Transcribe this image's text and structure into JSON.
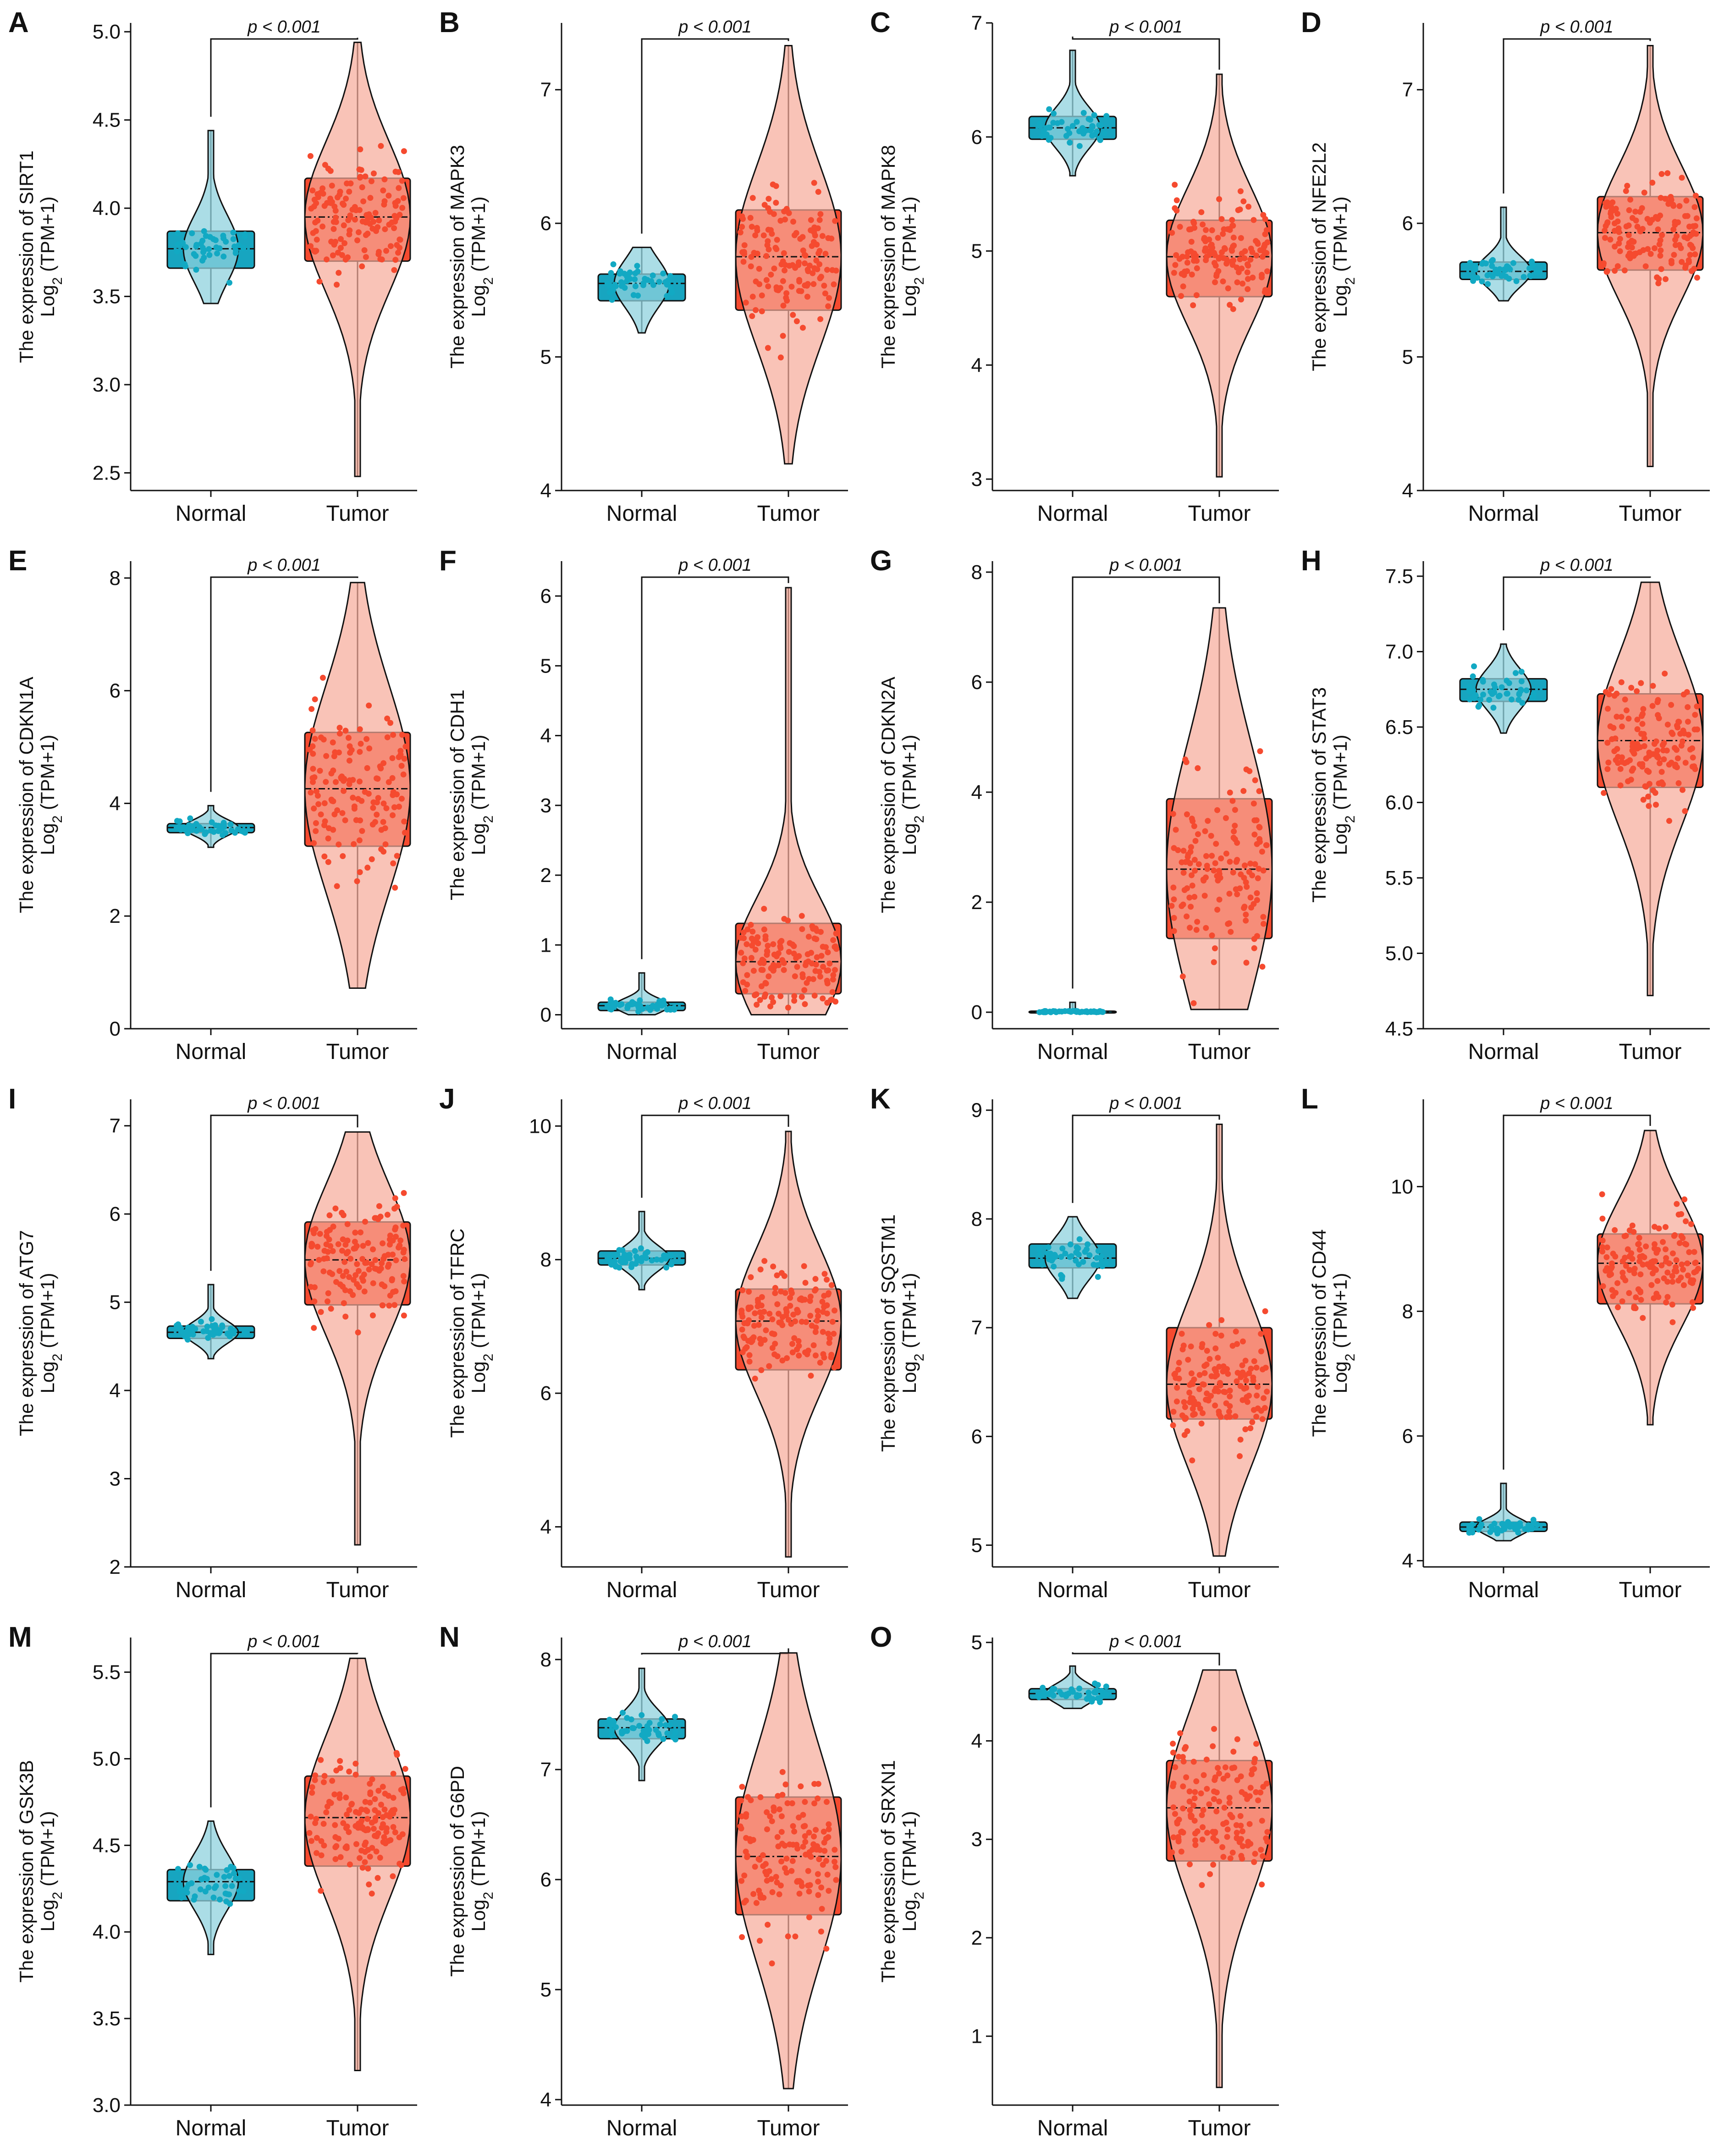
{
  "figure": {
    "colors": {
      "normal": "#12a9c3",
      "normal_fill": "#8fd1de",
      "tumor": "#f54a2f",
      "tumor_fill": "#f7aa98",
      "box_normal": "#17a5c0",
      "box_tumor": "#f54a2f"
    }
  },
  "chart_data": [
    {
      "type": "box",
      "letter": "A",
      "gene": "SIRT1",
      "ylabel": "The expression of SIRT1",
      "ylabel2_prefix": "Log",
      "ylabel2_sub": "2",
      "ylabel2_suffix": " (TPM+1)",
      "categories": [
        "Normal",
        "Tumor"
      ],
      "p_text": "p < 0.001",
      "ylim": [
        2.4,
        5.05
      ],
      "ticks": [
        2.5,
        3.0,
        3.5,
        4.0,
        4.5,
        5.0
      ],
      "tick_labels": [
        "2.5",
        "3.0",
        "3.5",
        "4.0",
        "4.5",
        "5.0"
      ],
      "normal": {
        "min": 3.46,
        "q1": 3.66,
        "median": 3.77,
        "q3": 3.87,
        "max": 4.44
      },
      "tumor": {
        "min": 2.48,
        "q1": 3.7,
        "median": 3.95,
        "q3": 4.17,
        "max": 4.94
      }
    },
    {
      "type": "box",
      "letter": "B",
      "gene": "MAPK3",
      "ylabel": "The expression of MAPK3",
      "ylabel2_prefix": "Log",
      "ylabel2_sub": "2",
      "ylabel2_suffix": " (TPM+1)",
      "categories": [
        "Normal",
        "Tumor"
      ],
      "p_text": "p < 0.001",
      "ylim": [
        4.0,
        7.5
      ],
      "ticks": [
        4,
        5,
        6,
        7
      ],
      "tick_labels": [
        "4",
        "5",
        "6",
        "7"
      ],
      "normal": {
        "min": 5.18,
        "q1": 5.42,
        "median": 5.55,
        "q3": 5.62,
        "max": 5.82
      },
      "tumor": {
        "min": 4.2,
        "q1": 5.35,
        "median": 5.75,
        "q3": 6.1,
        "max": 7.33
      }
    },
    {
      "type": "box",
      "letter": "C",
      "gene": "MAPK8",
      "ylabel": "The expression of MAPK8",
      "ylabel2_prefix": "Log",
      "ylabel2_sub": "2",
      "ylabel2_suffix": " (TPM+1)",
      "categories": [
        "Normal",
        "Tumor"
      ],
      "p_text": "p < 0.001",
      "ylim": [
        2.9,
        7.0
      ],
      "ticks": [
        3,
        4,
        5,
        6,
        7
      ],
      "tick_labels": [
        "3",
        "4",
        "5",
        "6",
        "7"
      ],
      "normal": {
        "min": 5.66,
        "q1": 5.98,
        "median": 6.08,
        "q3": 6.18,
        "max": 6.76
      },
      "tumor": {
        "min": 3.02,
        "q1": 4.6,
        "median": 4.95,
        "q3": 5.27,
        "max": 6.55
      }
    },
    {
      "type": "box",
      "letter": "D",
      "gene": "NFE2L2",
      "ylabel": "The expression of NFE2L2",
      "ylabel2_prefix": "Log",
      "ylabel2_sub": "2",
      "ylabel2_suffix": " (TPM+1)",
      "categories": [
        "Normal",
        "Tumor"
      ],
      "p_text": "p < 0.001",
      "ylim": [
        4.0,
        7.5
      ],
      "ticks": [
        4,
        5,
        6,
        7
      ],
      "tick_labels": [
        "4",
        "5",
        "6",
        "7"
      ],
      "normal": {
        "min": 5.42,
        "q1": 5.58,
        "median": 5.64,
        "q3": 5.71,
        "max": 6.12
      },
      "tumor": {
        "min": 4.18,
        "q1": 5.65,
        "median": 5.93,
        "q3": 6.2,
        "max": 7.33
      }
    },
    {
      "type": "box",
      "letter": "E",
      "gene": "CDKN1A",
      "ylabel": "The expression of CDKN1A",
      "ylabel2_prefix": "Log",
      "ylabel2_sub": "2",
      "ylabel2_suffix": " (TPM+1)",
      "categories": [
        "Normal",
        "Tumor"
      ],
      "p_text": "p < 0.001",
      "ylim": [
        0,
        8.3
      ],
      "ticks": [
        0,
        2,
        4,
        6,
        8
      ],
      "tick_labels": [
        "0",
        "2",
        "4",
        "6",
        "8"
      ],
      "normal": {
        "min": 3.22,
        "q1": 3.48,
        "median": 3.57,
        "q3": 3.64,
        "max": 3.96
      },
      "tumor": {
        "min": 0.72,
        "q1": 3.24,
        "median": 4.26,
        "q3": 5.26,
        "max": 7.92
      }
    },
    {
      "type": "box",
      "letter": "F",
      "gene": "CDH1",
      "ylabel": "The expression of CDH1",
      "ylabel2_prefix": "Log",
      "ylabel2_sub": "2",
      "ylabel2_suffix": " (TPM+1)",
      "categories": [
        "Normal",
        "Tumor"
      ],
      "p_text": "p < 0.001",
      "ylim": [
        -0.2,
        6.5
      ],
      "ticks": [
        0,
        1,
        2,
        3,
        4,
        5,
        6
      ],
      "tick_labels": [
        "0",
        "1",
        "2",
        "3",
        "4",
        "5",
        "6"
      ],
      "normal": {
        "min": 0.0,
        "q1": 0.06,
        "median": 0.13,
        "q3": 0.18,
        "max": 0.6
      },
      "tumor": {
        "min": 0.0,
        "q1": 0.3,
        "median": 0.76,
        "q3": 1.31,
        "max": 6.12
      }
    },
    {
      "type": "box",
      "letter": "G",
      "gene": "CDKN2A",
      "ylabel": "The expression of CDKN2A",
      "ylabel2_prefix": "Log",
      "ylabel2_sub": "2",
      "ylabel2_suffix": " (TPM+1)",
      "categories": [
        "Normal",
        "Tumor"
      ],
      "p_text": "p < 0.001",
      "ylim": [
        -0.3,
        8.2
      ],
      "ticks": [
        0,
        2,
        4,
        6,
        8
      ],
      "tick_labels": [
        "0",
        "2",
        "4",
        "6",
        "8"
      ],
      "normal": {
        "min": 0.0,
        "q1": 0.0,
        "median": 0.01,
        "q3": 0.02,
        "max": 0.18
      },
      "tumor": {
        "min": 0.05,
        "q1": 1.34,
        "median": 2.6,
        "q3": 3.88,
        "max": 7.35
      }
    },
    {
      "type": "box",
      "letter": "H",
      "gene": "STAT3",
      "ylabel": "The expression of STAT3",
      "ylabel2_prefix": "Log",
      "ylabel2_sub": "2",
      "ylabel2_suffix": " (TPM+1)",
      "categories": [
        "Normal",
        "Tumor"
      ],
      "p_text": "p < 0.001",
      "ylim": [
        4.5,
        7.6
      ],
      "ticks": [
        4.5,
        5.0,
        5.5,
        6.0,
        6.5,
        7.0,
        7.5
      ],
      "tick_labels": [
        "4.5",
        "5.0",
        "5.5",
        "6.0",
        "6.5",
        "7.0",
        "7.5"
      ],
      "normal": {
        "min": 6.46,
        "q1": 6.67,
        "median": 6.75,
        "q3": 6.82,
        "max": 7.05
      },
      "tumor": {
        "min": 4.72,
        "q1": 6.1,
        "median": 6.41,
        "q3": 6.72,
        "max": 7.46
      }
    },
    {
      "type": "box",
      "letter": "I",
      "gene": "ATG7",
      "ylabel": "The expression of ATG7",
      "ylabel2_prefix": "Log",
      "ylabel2_sub": "2",
      "ylabel2_suffix": " (TPM+1)",
      "categories": [
        "Normal",
        "Tumor"
      ],
      "p_text": "p < 0.001",
      "ylim": [
        2.0,
        7.3
      ],
      "ticks": [
        2,
        3,
        4,
        5,
        6,
        7
      ],
      "tick_labels": [
        "2",
        "3",
        "4",
        "5",
        "6",
        "7"
      ],
      "normal": {
        "min": 4.36,
        "q1": 4.59,
        "median": 4.66,
        "q3": 4.73,
        "max": 5.2
      },
      "tumor": {
        "min": 2.25,
        "q1": 4.97,
        "median": 5.48,
        "q3": 5.91,
        "max": 6.93
      }
    },
    {
      "type": "box",
      "letter": "J",
      "gene": "TFRC",
      "ylabel": "The expression of TFRC",
      "ylabel2_prefix": "Log",
      "ylabel2_sub": "2",
      "ylabel2_suffix": " (TPM+1)",
      "categories": [
        "Normal",
        "Tumor"
      ],
      "p_text": "p < 0.001",
      "ylim": [
        3.4,
        10.4
      ],
      "ticks": [
        4,
        6,
        8,
        10
      ],
      "tick_labels": [
        "4",
        "6",
        "8",
        "10"
      ],
      "normal": {
        "min": 7.55,
        "q1": 7.92,
        "median": 8.02,
        "q3": 8.13,
        "max": 8.72
      },
      "tumor": {
        "min": 3.55,
        "q1": 6.35,
        "median": 7.08,
        "q3": 7.56,
        "max": 9.92
      }
    },
    {
      "type": "box",
      "letter": "K",
      "gene": "SQSTM1",
      "ylabel": "The expression of SQSTM1",
      "ylabel2_prefix": "Log",
      "ylabel2_sub": "2",
      "ylabel2_suffix": " (TPM+1)",
      "categories": [
        "Normal",
        "Tumor"
      ],
      "p_text": "p < 0.001",
      "ylim": [
        4.8,
        9.1
      ],
      "ticks": [
        5,
        6,
        7,
        8,
        9
      ],
      "tick_labels": [
        "5",
        "6",
        "7",
        "8",
        "9"
      ],
      "normal": {
        "min": 7.27,
        "q1": 7.55,
        "median": 7.64,
        "q3": 7.77,
        "max": 8.02
      },
      "tumor": {
        "min": 4.9,
        "q1": 6.16,
        "median": 6.48,
        "q3": 7.0,
        "max": 8.87
      }
    },
    {
      "type": "box",
      "letter": "L",
      "gene": "CD44",
      "ylabel": "The expression of CD44",
      "ylabel2_prefix": "Log",
      "ylabel2_sub": "2",
      "ylabel2_suffix": " (TPM+1)",
      "categories": [
        "Normal",
        "Tumor"
      ],
      "p_text": "p < 0.001",
      "ylim": [
        3.9,
        11.4
      ],
      "ticks": [
        4,
        6,
        8,
        10
      ],
      "tick_labels": [
        "4",
        "6",
        "8",
        "10"
      ],
      "normal": {
        "min": 4.32,
        "q1": 4.47,
        "median": 4.54,
        "q3": 4.62,
        "max": 5.24
      },
      "tumor": {
        "min": 6.18,
        "q1": 8.12,
        "median": 8.77,
        "q3": 9.24,
        "max": 10.9
      }
    },
    {
      "type": "box",
      "letter": "M",
      "gene": "GSK3B",
      "ylabel": "The expression of GSK3B",
      "ylabel2_prefix": "Log",
      "ylabel2_sub": "2",
      "ylabel2_suffix": " (TPM+1)",
      "categories": [
        "Normal",
        "Tumor"
      ],
      "p_text": "p < 0.001",
      "ylim": [
        3.0,
        5.7
      ],
      "ticks": [
        3.0,
        3.5,
        4.0,
        4.5,
        5.0,
        5.5
      ],
      "tick_labels": [
        "3.0",
        "3.5",
        "4.0",
        "4.5",
        "5.0",
        "5.5"
      ],
      "normal": {
        "min": 3.87,
        "q1": 4.18,
        "median": 4.29,
        "q3": 4.36,
        "max": 4.64
      },
      "tumor": {
        "min": 3.2,
        "q1": 4.38,
        "median": 4.66,
        "q3": 4.9,
        "max": 5.58
      }
    },
    {
      "type": "box",
      "letter": "N",
      "gene": "G6PD",
      "ylabel": "The expression of G6PD",
      "ylabel2_prefix": "Log",
      "ylabel2_sub": "2",
      "ylabel2_suffix": " (TPM+1)",
      "categories": [
        "Normal",
        "Tumor"
      ],
      "p_text": "p < 0.001",
      "ylim": [
        3.95,
        8.2
      ],
      "ticks": [
        4,
        5,
        6,
        7,
        8
      ],
      "tick_labels": [
        "4",
        "5",
        "6",
        "7",
        "8"
      ],
      "normal": {
        "min": 6.9,
        "q1": 7.28,
        "median": 7.38,
        "q3": 7.46,
        "max": 7.92
      },
      "tumor": {
        "min": 4.1,
        "q1": 5.68,
        "median": 6.21,
        "q3": 6.75,
        "max": 8.06
      }
    },
    {
      "type": "box",
      "letter": "O",
      "gene": "SRXN1",
      "ylabel": "The expression of SRXN1",
      "ylabel2_prefix": "Log",
      "ylabel2_sub": "2",
      "ylabel2_suffix": " (TPM+1)",
      "categories": [
        "Normal",
        "Tumor"
      ],
      "p_text": "p < 0.001",
      "ylim": [
        0.3,
        5.05
      ],
      "ticks": [
        1,
        2,
        3,
        4,
        5
      ],
      "tick_labels": [
        "1",
        "2",
        "3",
        "4",
        "5"
      ],
      "normal": {
        "min": 4.33,
        "q1": 4.42,
        "median": 4.48,
        "q3": 4.53,
        "max": 4.76
      },
      "tumor": {
        "min": 0.48,
        "q1": 2.78,
        "median": 3.32,
        "q3": 3.8,
        "max": 4.72
      }
    }
  ]
}
